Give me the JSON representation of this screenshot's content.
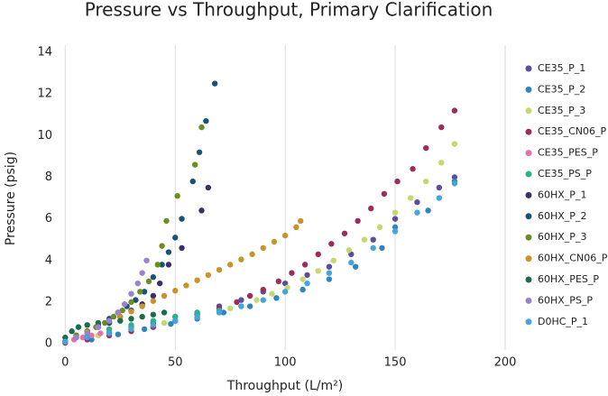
{
  "chart_data": {
    "type": "scatter",
    "title": "Pressure vs Throughput, Primary Clarification",
    "x_label": "Throughput (L/m²)",
    "y_label": "Pressure (psig)",
    "xlim": [
      -3,
      200
    ],
    "ylim": [
      -0.3,
      14
    ],
    "xticks": [
      0,
      50,
      100,
      150,
      200
    ],
    "yticks": [
      0,
      2,
      4,
      6,
      8,
      10,
      12,
      14
    ],
    "grid": "x",
    "legend": "right",
    "series": [
      {
        "name": "CE35_P_1",
        "color": "#5b4e9e",
        "x": [
          0,
          10,
          20,
          30,
          40,
          50,
          60,
          70,
          80,
          90,
          100,
          110,
          120,
          130,
          140,
          150,
          160,
          170,
          177
        ],
        "values": [
          0.1,
          0.3,
          0.5,
          0.8,
          1.0,
          1.3,
          1.5,
          1.8,
          2.1,
          2.5,
          2.9,
          3.3,
          3.7,
          4.3,
          5.0,
          6.0,
          6.8,
          7.5,
          8.0
        ]
      },
      {
        "name": "CE35_P_2",
        "color": "#2e86c1",
        "x": [
          0,
          12,
          24,
          36,
          48,
          60,
          72,
          84,
          96,
          108,
          120,
          132,
          144,
          150,
          165,
          177
        ],
        "values": [
          0.05,
          0.2,
          0.45,
          0.7,
          0.95,
          1.2,
          1.5,
          1.8,
          2.2,
          2.6,
          3.1,
          3.7,
          4.6,
          5.6,
          6.4,
          7.8
        ]
      },
      {
        "name": "CE35_P_3",
        "color": "#c5d86d",
        "x": [
          0,
          15,
          30,
          45,
          60,
          75,
          87,
          94,
          101,
          108,
          115,
          122,
          129,
          136,
          143,
          150,
          157,
          164,
          171,
          177
        ],
        "values": [
          0.1,
          0.4,
          0.7,
          1.0,
          1.3,
          1.7,
          2.1,
          2.4,
          2.7,
          3.1,
          3.5,
          4.0,
          4.5,
          5.0,
          5.6,
          6.3,
          7.0,
          7.8,
          8.7,
          9.6
        ]
      },
      {
        "name": "CE35_CN06_P",
        "color": "#9b2d5c",
        "x": [
          0,
          10,
          20,
          30,
          40,
          50,
          60,
          70,
          78,
          84,
          90,
          97,
          103,
          109,
          115,
          121,
          127,
          133,
          139,
          145,
          151,
          158,
          164,
          171,
          177
        ],
        "values": [
          0.05,
          0.2,
          0.4,
          0.6,
          0.8,
          1.1,
          1.4,
          1.7,
          2.0,
          2.3,
          2.6,
          3.0,
          3.4,
          3.8,
          4.3,
          4.8,
          5.3,
          5.9,
          6.5,
          7.2,
          7.8,
          8.4,
          9.4,
          10.4,
          11.2
        ]
      },
      {
        "name": "CE35_PES_P",
        "color": "#e86fa8",
        "x": [
          0,
          4,
          8,
          12,
          16,
          20
        ],
        "values": [
          0.1,
          0.2,
          0.3,
          0.4,
          0.5,
          0.6
        ]
      },
      {
        "name": "CE35_PS_P",
        "color": "#2bb48a",
        "x": [
          0,
          10,
          20,
          30,
          40,
          50,
          60,
          70,
          80
        ],
        "values": [
          0.1,
          0.4,
          0.7,
          0.9,
          1.1,
          1.3,
          1.5,
          1.6,
          1.8
        ]
      },
      {
        "name": "60HX_P_1",
        "color": "#3a2f6b",
        "x": [
          0,
          5,
          10,
          15,
          20,
          25,
          30,
          35,
          40,
          43,
          47,
          53,
          62,
          65
        ],
        "values": [
          0.1,
          0.4,
          0.6,
          0.8,
          1.0,
          1.3,
          1.6,
          1.9,
          2.3,
          2.9,
          3.8,
          4.6,
          6.4,
          7.5
        ]
      },
      {
        "name": "60HX_P_2",
        "color": "#1a5276",
        "x": [
          0,
          5,
          10,
          15,
          20,
          24,
          28,
          32,
          36,
          40,
          44,
          47,
          50,
          53,
          58,
          61,
          64,
          68
        ],
        "values": [
          0.1,
          0.3,
          0.6,
          0.9,
          1.2,
          1.5,
          1.8,
          2.1,
          2.5,
          3.2,
          3.8,
          4.4,
          5.1,
          6.0,
          7.8,
          9.2,
          10.7,
          12.5
        ]
      },
      {
        "name": "60HX_P_3",
        "color": "#6b8e23",
        "x": [
          0,
          5,
          10,
          14,
          18,
          22,
          26,
          30,
          34,
          38,
          42,
          44,
          46,
          51,
          59,
          62
        ],
        "values": [
          0.1,
          0.4,
          0.6,
          0.8,
          1.0,
          1.3,
          1.6,
          2.0,
          2.5,
          3.0,
          3.8,
          4.7,
          5.9,
          7.1,
          8.6,
          10.4
        ]
      },
      {
        "name": "60HX_CN06_P",
        "color": "#c8942a",
        "x": [
          0,
          5,
          10,
          15,
          20,
          25,
          30,
          35,
          40,
          45,
          50,
          55,
          60,
          65,
          70,
          75,
          80,
          85,
          90,
          95,
          100,
          105,
          107
        ],
        "values": [
          0.1,
          0.3,
          0.55,
          0.8,
          1.05,
          1.3,
          1.55,
          1.8,
          2.05,
          2.3,
          2.55,
          2.8,
          3.05,
          3.3,
          3.55,
          3.8,
          4.05,
          4.3,
          4.6,
          4.9,
          5.2,
          5.6,
          5.9
        ]
      },
      {
        "name": "60HX_PES_P",
        "color": "#1e6b4a",
        "x": [
          0,
          3,
          6,
          10,
          15,
          20,
          25,
          30,
          35,
          40,
          45
        ],
        "values": [
          0.3,
          0.6,
          0.8,
          0.9,
          1.0,
          1.05,
          1.1,
          1.2,
          1.3,
          1.4,
          1.5
        ]
      },
      {
        "name": "60HX_PS_P",
        "color": "#9b82d0",
        "x": [
          0,
          5,
          10,
          15,
          20,
          24,
          27,
          30,
          33,
          35,
          37
        ],
        "values": [
          0.1,
          0.3,
          0.5,
          0.8,
          1.1,
          1.5,
          1.9,
          2.4,
          2.9,
          3.4,
          4.0
        ]
      },
      {
        "name": "D0HC_P_1",
        "color": "#45a5db",
        "x": [
          0,
          10,
          20,
          30,
          40,
          50,
          60,
          70,
          80,
          90,
          100,
          110,
          120,
          130,
          140,
          150,
          160,
          170,
          177
        ],
        "values": [
          0.1,
          0.3,
          0.5,
          0.7,
          0.9,
          1.1,
          1.3,
          1.5,
          1.8,
          2.1,
          2.5,
          2.9,
          3.4,
          3.9,
          4.6,
          5.4,
          6.3,
          7.0,
          7.7
        ]
      }
    ]
  }
}
